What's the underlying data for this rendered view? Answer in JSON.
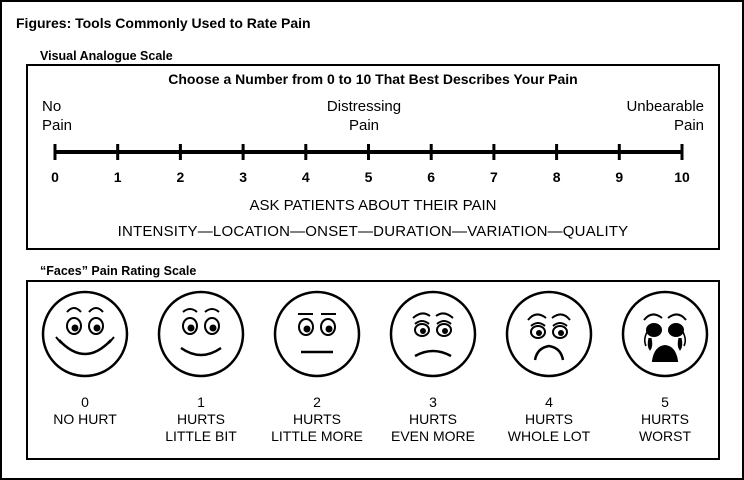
{
  "figure_title": "Figures: Tools Commonly Used to Rate Pain",
  "vas": {
    "section_label": "Visual Analogue Scale",
    "heading": "Choose a Number from 0 to 10 That Best Describes Your Pain",
    "anchors": {
      "left": [
        "No",
        "Pain"
      ],
      "middle": [
        "Distressing",
        "Pain"
      ],
      "right": [
        "Unbearable",
        "Pain"
      ]
    },
    "scale": [
      "0",
      "1",
      "2",
      "3",
      "4",
      "5",
      "6",
      "7",
      "8",
      "9",
      "10"
    ],
    "ask_line": "ASK PATIENTS ABOUT THEIR PAIN",
    "dimensions_line": "INTENSITY—LOCATION—ONSET—DURATION—VARIATION—QUALITY"
  },
  "faces": {
    "section_label": "“Faces” Pain Rating Scale",
    "items": [
      {
        "score": "0",
        "label_1": "NO HURT",
        "label_2": ""
      },
      {
        "score": "1",
        "label_1": "HURTS",
        "label_2": "LITTLE BIT"
      },
      {
        "score": "2",
        "label_1": "HURTS",
        "label_2": "LITTLE MORE"
      },
      {
        "score": "3",
        "label_1": "HURTS",
        "label_2": "EVEN MORE"
      },
      {
        "score": "4",
        "label_1": "HURTS",
        "label_2": "WHOLE LOT"
      },
      {
        "score": "5",
        "label_1": "HURTS",
        "label_2": "WORST"
      }
    ]
  }
}
